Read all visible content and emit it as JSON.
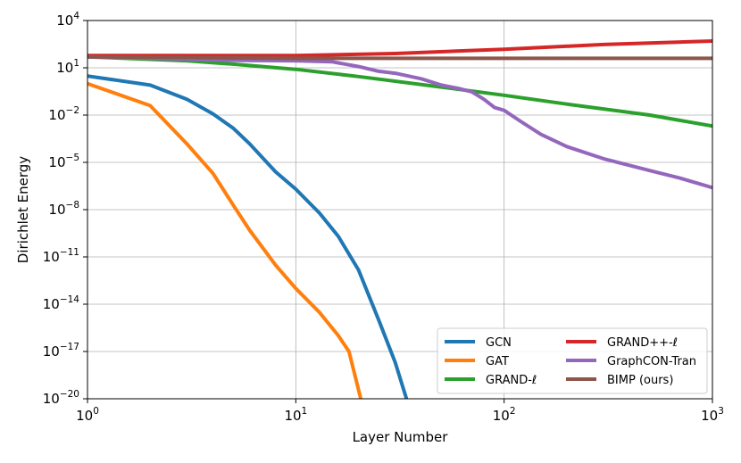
{
  "chart_data": {
    "type": "line",
    "xlabel": "Layer Number",
    "ylabel": "Dirichlet Energy",
    "xscale": "log",
    "yscale": "log",
    "xlim": [
      1,
      1000
    ],
    "ylim": [
      1e-20,
      10000
    ],
    "grid": true,
    "legend_position": "lower-right",
    "x_ticks": [
      {
        "value": 1,
        "base": "10",
        "exp": "0"
      },
      {
        "value": 10,
        "base": "10",
        "exp": "1"
      },
      {
        "value": 100,
        "base": "10",
        "exp": "2"
      },
      {
        "value": 1000,
        "base": "10",
        "exp": "3"
      }
    ],
    "y_ticks": [
      {
        "value": 10000.0,
        "base": "10",
        "exp": "4"
      },
      {
        "value": 10.0,
        "base": "10",
        "exp": "1"
      },
      {
        "value": 0.01,
        "base": "10",
        "exp": "−2"
      },
      {
        "value": 1e-05,
        "base": "10",
        "exp": "−5"
      },
      {
        "value": 1e-08,
        "base": "10",
        "exp": "−8"
      },
      {
        "value": 1e-11,
        "base": "10",
        "exp": "−11"
      },
      {
        "value": 1e-14,
        "base": "10",
        "exp": "−14"
      },
      {
        "value": 1e-17,
        "base": "10",
        "exp": "−17"
      },
      {
        "value": 1e-20,
        "base": "10",
        "exp": "−20"
      }
    ],
    "series": [
      {
        "name": "GCN",
        "color": "#1f77b4",
        "x": [
          1,
          2,
          3,
          4,
          5,
          6,
          8,
          10,
          13,
          16,
          20,
          25,
          30,
          34
        ],
        "y": [
          3,
          0.8,
          0.1,
          0.012,
          0.0015,
          0.00015,
          2.5e-06,
          2e-07,
          6e-09,
          2e-10,
          1.5e-12,
          1e-15,
          2e-18,
          1e-20
        ]
      },
      {
        "name": "GAT",
        "color": "#ff7f0e",
        "x": [
          1,
          2,
          3,
          4,
          5,
          6,
          8,
          10,
          13,
          16,
          18,
          20.5
        ],
        "y": [
          1,
          0.04,
          0.00015,
          2e-06,
          2e-08,
          5e-10,
          3e-12,
          1e-13,
          3e-15,
          1e-16,
          1e-17,
          1e-20
        ]
      },
      {
        "name": "GRAND-ℓ",
        "color": "#2ca02c",
        "x": [
          1,
          3,
          5,
          10,
          20,
          50,
          100,
          200,
          500,
          1000
        ],
        "y": [
          50,
          28,
          17,
          8,
          2.8,
          0.6,
          0.18,
          0.05,
          0.01,
          0.002
        ]
      },
      {
        "name": "GRAND++-ℓ",
        "color": "#d62728",
        "x": [
          1,
          10,
          30,
          100,
          300,
          1000
        ],
        "y": [
          60,
          60,
          80,
          150,
          300,
          500
        ]
      },
      {
        "name": "GraphCON-Tran",
        "color": "#9467bd",
        "x": [
          1,
          3,
          5,
          10,
          15,
          20,
          25,
          30,
          40,
          50,
          60,
          70,
          80,
          90,
          100,
          120,
          150,
          200,
          300,
          500,
          700,
          1000
        ],
        "y": [
          50,
          35,
          30,
          28,
          24,
          12,
          6,
          4.5,
          2,
          0.8,
          0.5,
          0.3,
          0.1,
          0.03,
          0.02,
          0.004,
          0.0006,
          0.0001,
          1.7e-05,
          3e-06,
          1e-06,
          2.5e-07
        ]
      },
      {
        "name": "BIMP (ours)",
        "color": "#8c564b",
        "x": [
          1,
          10,
          100,
          1000
        ],
        "y": [
          50,
          40,
          40,
          40
        ]
      }
    ]
  }
}
